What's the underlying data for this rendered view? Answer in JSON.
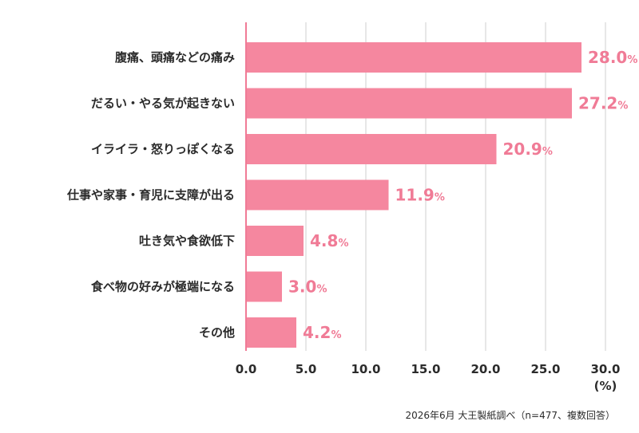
{
  "chart_data": {
    "type": "bar",
    "orientation": "horizontal",
    "categories": [
      "腹痛、頭痛などの痛み",
      "だるい・やる気が起きない",
      "イライラ・怒りっぽくなる",
      "仕事や家事・育児に支障が出る",
      "吐き気や食欲低下",
      "食べ物の好みが極端になる",
      "その他"
    ],
    "values": [
      28.0,
      27.2,
      20.9,
      11.9,
      4.8,
      3.0,
      4.2
    ],
    "value_labels": [
      "28.0",
      "27.2",
      "20.9",
      "11.9",
      "4.8",
      "3.0",
      "4.2"
    ],
    "value_suffix": "%",
    "xlim": [
      0,
      30
    ],
    "xticks": [
      "0.0",
      "5.0",
      "10.0",
      "15.0",
      "20.0",
      "25.0",
      "30.0"
    ],
    "xlabel": "(%)",
    "grid": true,
    "colors": {
      "bar": "#f5879f",
      "value_label": "#f07b96",
      "value_label_inside": "#ffffff",
      "grid": "#cfcfcf",
      "axis": "#f07b96"
    }
  },
  "source": "2026年6月 大王製紙調べ（n=477、複数回答）"
}
